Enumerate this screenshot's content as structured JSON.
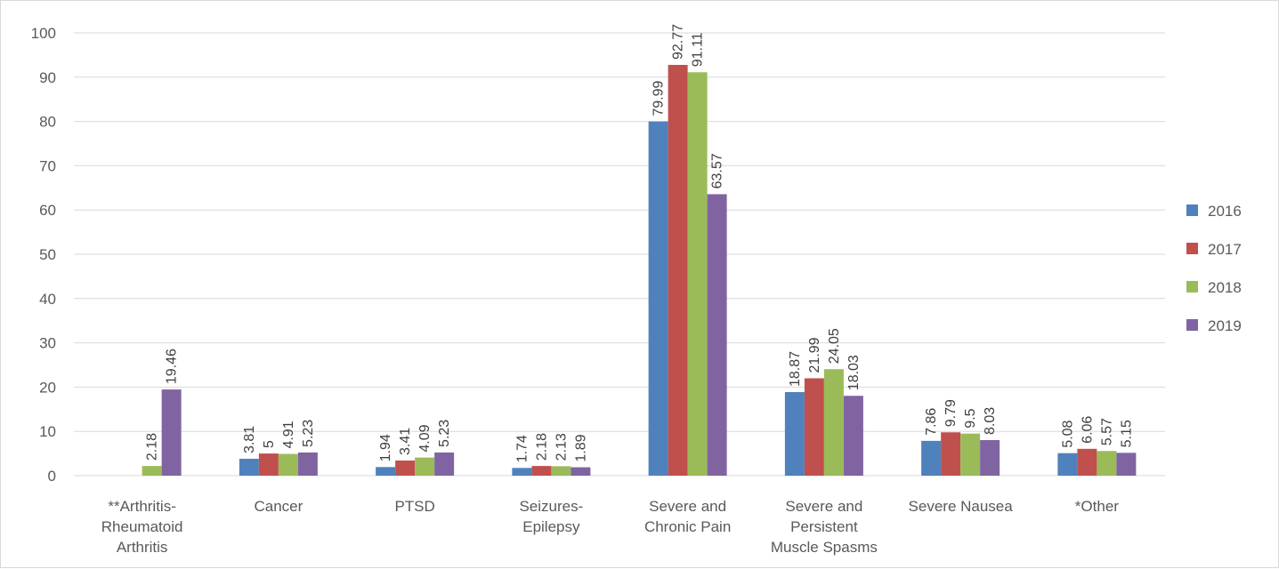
{
  "chart_data": {
    "type": "bar",
    "title": "",
    "xlabel": "",
    "ylabel": "",
    "ylim": [
      0,
      100
    ],
    "yticks": [
      0,
      10,
      20,
      30,
      40,
      50,
      60,
      70,
      80,
      90,
      100
    ],
    "grid": true,
    "legend_position": "right",
    "categories": [
      [
        "**Arthritis-",
        "Rheumatoid",
        "Arthritis"
      ],
      [
        "Cancer"
      ],
      [
        "PTSD"
      ],
      [
        "Seizures-",
        "Epilepsy"
      ],
      [
        "Severe and",
        "Chronic Pain"
      ],
      [
        "Severe and",
        "Persistent",
        "Muscle Spasms"
      ],
      [
        "Severe Nausea"
      ],
      [
        "*Other"
      ]
    ],
    "series": [
      {
        "name": "2016",
        "color": "#4f81bd",
        "values": [
          null,
          3.81,
          1.94,
          1.74,
          79.99,
          18.87,
          7.86,
          5.08
        ]
      },
      {
        "name": "2017",
        "color": "#c0504d",
        "values": [
          null,
          5,
          3.41,
          2.18,
          92.77,
          21.99,
          9.79,
          6.06
        ]
      },
      {
        "name": "2018",
        "color": "#9bbb59",
        "values": [
          2.18,
          4.91,
          4.09,
          2.13,
          91.11,
          24.05,
          9.5,
          5.57
        ]
      },
      {
        "name": "2019",
        "color": "#8064a2",
        "values": [
          19.46,
          5.23,
          5.23,
          1.89,
          63.57,
          18.03,
          8.03,
          5.15
        ]
      }
    ]
  }
}
